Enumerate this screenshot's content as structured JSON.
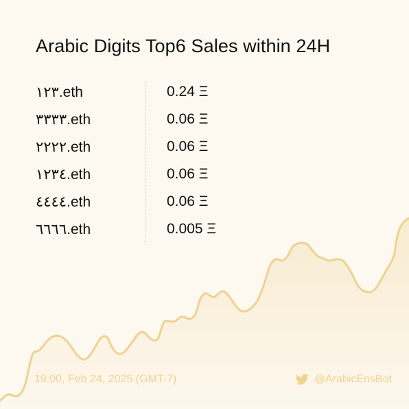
{
  "title": "Arabic Digits Top6 Sales within 24H",
  "sales": [
    {
      "name": "١٢٣.eth",
      "price": "0.24 Ξ"
    },
    {
      "name": "٣٣٣٣.eth",
      "price": "0.06 Ξ"
    },
    {
      "name": "٢٢٢٢.eth",
      "price": "0.06 Ξ"
    },
    {
      "name": "١٢٣٤.eth",
      "price": "0.06 Ξ"
    },
    {
      "name": "٤٤٤٤.eth",
      "price": "0.06 Ξ"
    },
    {
      "name": "٦٦٦٦.eth",
      "price": "0.005 Ξ"
    }
  ],
  "footer": {
    "timestamp": "19:00, Feb 24, 2025 (GMT-7)",
    "handle": "@ArabicEnsBot",
    "icon": "twitter-icon"
  },
  "colors": {
    "background": "#fdf9f1",
    "accent": "#efd190",
    "text": "#111111"
  }
}
